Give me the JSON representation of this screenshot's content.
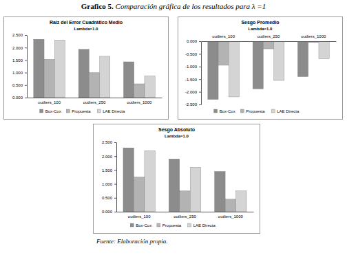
{
  "title": {
    "label": "Grafico 5.",
    "text": "Comparación gráfica de los resultados para λ =1"
  },
  "source": {
    "label": "Fuente:",
    "text": "Elaboración propia."
  },
  "chart_data": [
    {
      "type": "bar",
      "title": "Raiz del Error Cuadrático Medio",
      "subtitle": "Lambda=1.0",
      "categories": [
        "outliers_100",
        "outliers_250",
        "outliers_1000"
      ],
      "series": [
        {
          "name": "Box-Cox",
          "color": "#8c8c8c",
          "values": [
            2.33,
            1.93,
            1.43
          ]
        },
        {
          "name": "Propuesta",
          "color": "#b3b3b3",
          "values": [
            1.53,
            1.0,
            0.55
          ]
        },
        {
          "name": "LAE Directa",
          "color": "#d4d4d4",
          "values": [
            2.3,
            1.65,
            0.87
          ]
        }
      ],
      "ylim": [
        0,
        2.5
      ],
      "yticks": [
        {
          "value": 0,
          "label": "0.000"
        },
        {
          "value": 0.5,
          "label": "0.500"
        },
        {
          "value": 1,
          "label": "1.000"
        },
        {
          "value": 1.5,
          "label": "1.500"
        },
        {
          "value": 2,
          "label": "2.000"
        },
        {
          "value": 2.5,
          "label": "2.500"
        }
      ],
      "legend": "bottom"
    },
    {
      "type": "bar",
      "title": "Sesgo Promedio",
      "subtitle": "Lambda=1.0",
      "categories": [
        "outliers_100",
        "outliers_250",
        "outliers_1000"
      ],
      "series": [
        {
          "name": "Box-Cox",
          "color": "#8c8c8c",
          "values": [
            -2.3,
            -1.88,
            -1.4
          ]
        },
        {
          "name": "Propuesta",
          "color": "#b3b3b3",
          "values": [
            -0.95,
            -0.3,
            -0.05
          ]
        },
        {
          "name": "LAE Directa",
          "color": "#d4d4d4",
          "values": [
            -2.2,
            -1.55,
            -0.7
          ]
        }
      ],
      "ylim": [
        -2.5,
        0
      ],
      "yticks": [
        {
          "value": -2.5,
          "label": "-2.500"
        },
        {
          "value": -2,
          "label": "-2.000"
        },
        {
          "value": -1.5,
          "label": "-1.500"
        },
        {
          "value": -1,
          "label": "-1.000"
        },
        {
          "value": -0.5,
          "label": "-0.500"
        },
        {
          "value": 0,
          "label": "0.000"
        }
      ],
      "legend": "bottom"
    },
    {
      "type": "bar",
      "title": "Sesgo Absoluto",
      "subtitle": "Lambda=1.0",
      "categories": [
        "outliers_100",
        "outliers_250",
        "outliers_1000"
      ],
      "series": [
        {
          "name": "Box-Cox",
          "color": "#8c8c8c",
          "values": [
            2.3,
            1.9,
            1.45
          ]
        },
        {
          "name": "Propuesta",
          "color": "#b3b3b3",
          "values": [
            1.25,
            0.75,
            0.45
          ]
        },
        {
          "name": "LAE Directa",
          "color": "#d4d4d4",
          "values": [
            2.2,
            1.6,
            0.75
          ]
        }
      ],
      "ylim": [
        0,
        2.5
      ],
      "yticks": [
        {
          "value": 0,
          "label": "0.000"
        },
        {
          "value": 0.5,
          "label": "0.500"
        },
        {
          "value": 1,
          "label": "1.000"
        },
        {
          "value": 1.5,
          "label": "1.500"
        },
        {
          "value": 2,
          "label": "2.000"
        },
        {
          "value": 2.5,
          "label": "2.500"
        }
      ],
      "legend": "bottom"
    }
  ]
}
